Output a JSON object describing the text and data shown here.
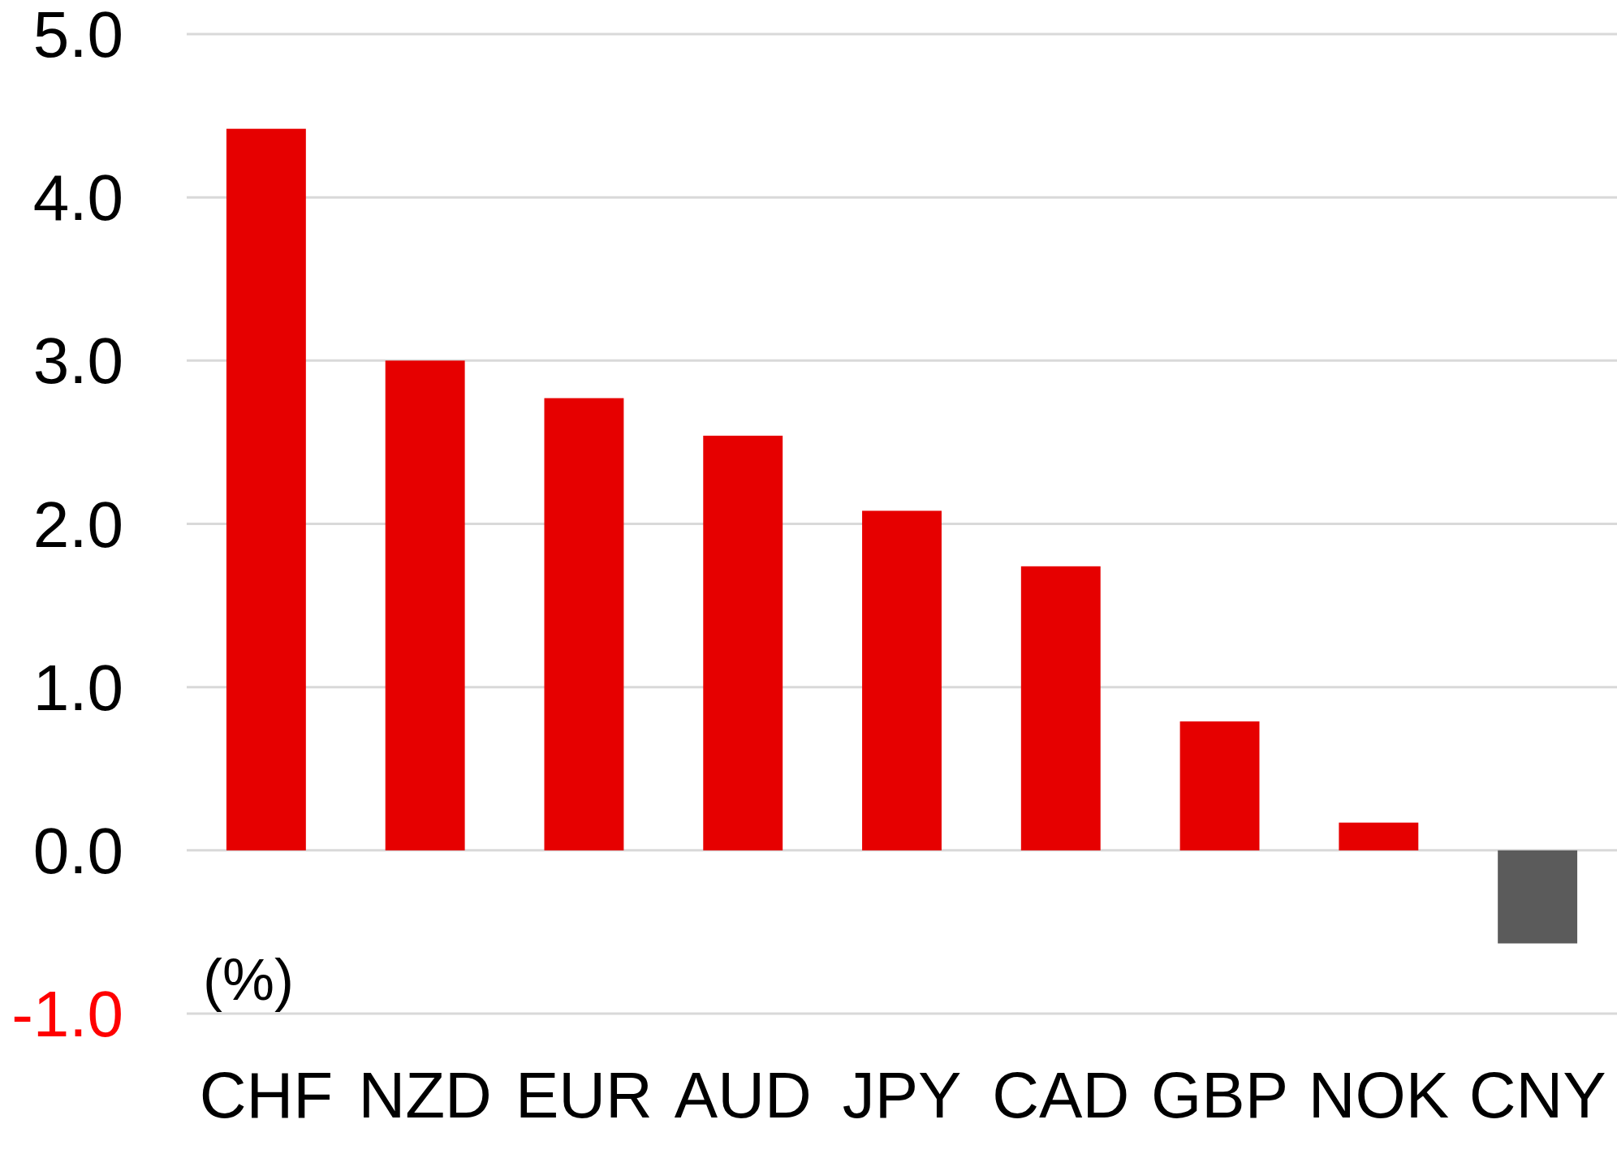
{
  "chart_data": {
    "type": "bar",
    "ylabel": "(%)",
    "categories": [
      "CHF",
      "NZD",
      "EUR",
      "AUD",
      "JPY",
      "CAD",
      "GBP",
      "NOK",
      "CNY"
    ],
    "values": [
      4.42,
      3.0,
      2.77,
      2.54,
      2.08,
      1.74,
      0.79,
      0.17,
      -0.57
    ],
    "colors": [
      "#e60000",
      "#e60000",
      "#e60000",
      "#e60000",
      "#e60000",
      "#e60000",
      "#e60000",
      "#e60000",
      "#5b5b5b"
    ],
    "ylim": [
      -1,
      5
    ],
    "yticks": [
      {
        "value": -1,
        "label": "-1.0"
      },
      {
        "value": 0,
        "label": "0.0"
      },
      {
        "value": 1,
        "label": "1.0"
      },
      {
        "value": 2,
        "label": "2.0"
      },
      {
        "value": 3,
        "label": "3.0"
      },
      {
        "value": 4,
        "label": "4.0"
      },
      {
        "value": 5,
        "label": "5.0"
      }
    ],
    "grid": "y"
  }
}
